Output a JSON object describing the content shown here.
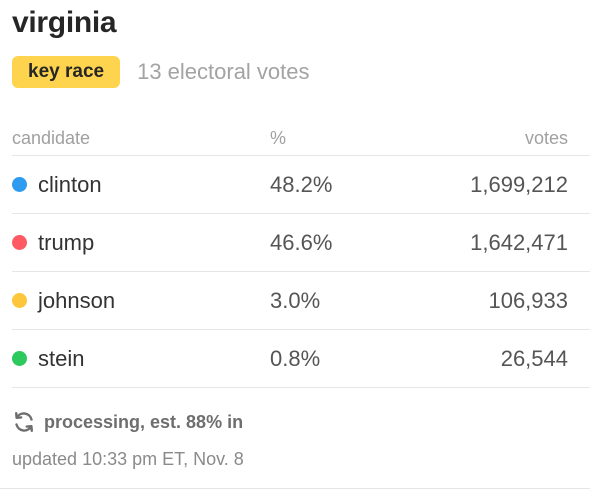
{
  "race": {
    "state": "virginia",
    "badge": "key race",
    "electoral_votes": "13 electoral votes"
  },
  "table": {
    "headers": {
      "candidate": "candidate",
      "percent": "%",
      "votes": "votes"
    },
    "rows": [
      {
        "name": "clinton",
        "percent": "48.2%",
        "votes": "1,699,212",
        "color": "#2d9cf0"
      },
      {
        "name": "trump",
        "percent": "46.6%",
        "votes": "1,642,471",
        "color": "#ff5a64"
      },
      {
        "name": "johnson",
        "percent": "3.0%",
        "votes": "106,933",
        "color": "#fec73b"
      },
      {
        "name": "stein",
        "percent": "0.8%",
        "votes": "26,544",
        "color": "#2ec95c"
      }
    ]
  },
  "status": {
    "icon": "refresh-icon",
    "text": "processing, est. 88% in",
    "updated": "updated 10:33 pm ET, Nov. 8"
  },
  "colors": {
    "badge_bg": "#fed44f",
    "divider": "#e6e6e6"
  }
}
